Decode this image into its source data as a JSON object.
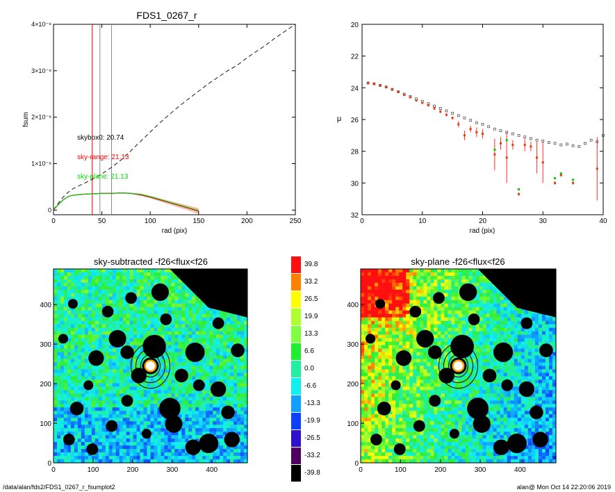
{
  "footer": {
    "path": "/data/alan/fds2/FDS1_0267_r_fsumplot2",
    "stamp": "alan@  Mon Oct 14 22:20:06 2019"
  },
  "chart_data": [
    {
      "id": "fsum",
      "type": "line",
      "title": "FDS1_0267_r",
      "xlabel": "rad (pix)",
      "ylabel": "fsum",
      "xlim": [
        0,
        250
      ],
      "ylim": [
        -1e-09,
        4e-08
      ],
      "xticks": [
        "0",
        "50",
        "100",
        "150",
        "200",
        "250"
      ],
      "yticks": [
        "0",
        "1×10⁻⁸",
        "2×10⁻⁸",
        "3×10⁻⁸",
        "4×10⁻⁸"
      ],
      "ytick_values": [
        0,
        1e-08,
        2e-08,
        3e-08,
        4e-08
      ],
      "vlines": [
        {
          "x": 40,
          "color": "#ff0000"
        },
        {
          "x": 48,
          "color": "#888888"
        },
        {
          "x": 60,
          "color": "#888888"
        }
      ],
      "annotations": [
        {
          "text": "skybox0: 20.74",
          "color": "#000000"
        },
        {
          "text": "sky-range: 21.13",
          "color": "#ff0000"
        },
        {
          "text": "sky-plane: 21.13",
          "color": "#00dd00"
        }
      ],
      "series": [
        {
          "style": "dashed",
          "color": "#000000",
          "x": [
            0,
            5,
            10,
            15,
            20,
            30,
            40,
            50,
            60,
            70,
            80,
            90,
            100,
            110,
            120,
            130,
            140,
            150,
            160,
            170,
            180,
            190,
            200,
            210,
            220,
            230,
            240,
            250
          ],
          "y": [
            0,
            1.5e-09,
            2.8e-09,
            3.8e-09,
            4.6e-09,
            5.6e-09,
            6.6e-09,
            7.8e-09,
            9.2e-09,
            1.08e-08,
            1.28e-08,
            1.48e-08,
            1.68e-08,
            1.88e-08,
            2.06e-08,
            2.24e-08,
            2.4e-08,
            2.56e-08,
            2.72e-08,
            2.86e-08,
            3e-08,
            3.12e-08,
            3.28e-08,
            3.42e-08,
            3.56e-08,
            3.72e-08,
            3.86e-08,
            4e-08
          ]
        },
        {
          "style": "solid",
          "color": "#000000",
          "x": [
            0,
            5,
            10,
            15,
            20,
            30,
            40,
            50,
            60,
            70,
            80,
            90,
            100,
            110,
            120,
            130,
            140,
            150
          ],
          "y": [
            0,
            1.2e-09,
            2.2e-09,
            2.9e-09,
            3.2e-09,
            3.4e-09,
            3.5e-09,
            3.6e-09,
            3.6e-09,
            3.7e-09,
            3.6e-09,
            3.3e-09,
            2.8e-09,
            2.2e-09,
            1.6e-09,
            1e-09,
            4e-10,
            -2e-10
          ]
        },
        {
          "style": "solid",
          "color": "#ff0000",
          "x": [
            0,
            5,
            10,
            15,
            20,
            30,
            40,
            50,
            60,
            70,
            80,
            90,
            100,
            110,
            120,
            130,
            140,
            150
          ],
          "y": [
            0,
            1.2e-09,
            2.2e-09,
            2.9e-09,
            3.2e-09,
            3.4e-09,
            3.5e-09,
            3.6e-09,
            3.6e-09,
            3.7e-09,
            3.6e-09,
            3.3e-09,
            2.8e-09,
            2.2e-09,
            1.6e-09,
            1e-09,
            4e-10,
            -2e-10
          ]
        },
        {
          "style": "solid",
          "color": "#00cc00",
          "x": [
            0,
            5,
            10,
            15,
            20,
            30,
            40,
            50,
            60,
            70,
            80,
            90,
            100,
            110,
            120,
            130,
            140,
            150
          ],
          "y": [
            0,
            1.2e-09,
            2.2e-09,
            2.9e-09,
            3.2e-09,
            3.4e-09,
            3.5e-09,
            3.6e-09,
            3.6e-09,
            3.7e-09,
            3.6e-09,
            3.4e-09,
            2.9e-09,
            2.3e-09,
            1.7e-09,
            1.1e-09,
            5e-10,
            -1e-10
          ]
        }
      ]
    },
    {
      "id": "mu",
      "type": "scatter",
      "title": "",
      "xlabel": "rad (pix)",
      "ylabel": "μ",
      "xlim": [
        0,
        40
      ],
      "ylim": [
        32,
        20
      ],
      "xticks": [
        "0",
        "10",
        "20",
        "30",
        "40"
      ],
      "yticks": [
        "20",
        "22",
        "24",
        "26",
        "28",
        "30",
        "32"
      ],
      "series": [
        {
          "marker": "open-square",
          "color": "#555555",
          "x": [
            1,
            2,
            3,
            4,
            5,
            6,
            7,
            8,
            9,
            10,
            11,
            12,
            13,
            14,
            15,
            16,
            17,
            18,
            19,
            20,
            21,
            22,
            23,
            24,
            25,
            26,
            27,
            28,
            29,
            30,
            31,
            32,
            33,
            34,
            35,
            36,
            37,
            38,
            39,
            40
          ],
          "y": [
            23.7,
            23.75,
            23.85,
            23.95,
            24.1,
            24.25,
            24.4,
            24.55,
            24.7,
            24.85,
            25.0,
            25.15,
            25.3,
            25.45,
            25.6,
            25.75,
            25.9,
            26.05,
            26.2,
            26.3,
            26.45,
            26.6,
            26.7,
            26.8,
            26.9,
            27.0,
            27.1,
            27.2,
            27.3,
            27.35,
            27.45,
            27.5,
            27.6,
            27.55,
            27.65,
            27.7,
            27.5,
            27.3,
            27.4,
            27.0
          ]
        },
        {
          "marker": "filled-dot",
          "color": "#ff0000",
          "x": [
            1,
            2,
            3,
            4,
            5,
            6,
            7,
            8,
            9,
            10,
            11,
            12,
            13,
            14,
            15,
            16,
            17,
            18,
            19,
            20,
            22,
            23,
            24,
            25,
            26,
            27,
            28,
            29,
            30,
            32,
            33,
            35,
            39
          ],
          "y": [
            23.7,
            23.75,
            23.85,
            23.95,
            24.1,
            24.25,
            24.45,
            24.6,
            24.8,
            24.95,
            25.1,
            25.3,
            25.5,
            25.7,
            25.9,
            26.3,
            27.0,
            26.6,
            26.8,
            26.9,
            28.2,
            27.5,
            28.4,
            27.6,
            30.7,
            27.6,
            27.7,
            28.4,
            28.7,
            30.0,
            29.5,
            30.0,
            29.1
          ],
          "err": [
            0.05,
            0.05,
            0.05,
            0.05,
            0.05,
            0.05,
            0.05,
            0.05,
            0.05,
            0.05,
            0.08,
            0.08,
            0.1,
            0.1,
            0.1,
            0.2,
            0.3,
            0.2,
            0.3,
            0.3,
            1.0,
            0.4,
            1.6,
            0.3,
            0.1,
            0.4,
            0.3,
            1.0,
            1.3,
            0.1,
            0.1,
            0.1,
            2.0
          ]
        },
        {
          "marker": "filled-dot",
          "color": "#00cc00",
          "x": [
            22,
            24,
            26,
            32,
            33,
            35
          ],
          "y": [
            27.9,
            27.3,
            30.4,
            29.7,
            29.4,
            29.8
          ]
        }
      ]
    },
    {
      "id": "sky-subtracted",
      "type": "heatmap",
      "title": "sky-subtracted -f26<flux<f26",
      "xlim": [
        0,
        490
      ],
      "ylim": [
        0,
        490
      ],
      "xticks": [
        "0",
        "100",
        "200",
        "300",
        "400"
      ],
      "yticks": [
        "0",
        "100",
        "200",
        "300",
        "400"
      ],
      "center": [
        245,
        248
      ]
    },
    {
      "id": "sky-plane",
      "type": "heatmap",
      "title": "sky-plane -f26<flux<f26",
      "xlim": [
        0,
        490
      ],
      "ylim": [
        0,
        490
      ],
      "xticks": [
        "0",
        "100",
        "200",
        "300",
        "400"
      ],
      "yticks": [
        "0",
        "100",
        "200",
        "300",
        "400"
      ],
      "center": [
        245,
        248
      ]
    },
    {
      "id": "colorbar",
      "type": "table",
      "labels": [
        "39.8",
        "33.2",
        "26.5",
        "19.9",
        "13.3",
        "6.6",
        "0.0",
        "-6.6",
        "-13.3",
        "-19.9",
        "-26.5",
        "-33.2",
        "-39.8"
      ],
      "colors": [
        "#ff1010",
        "#ff8000",
        "#ffff00",
        "#b0ff30",
        "#80ff40",
        "#20ee30",
        "#20f0a0",
        "#10f0f0",
        "#10a0ff",
        "#1040ff",
        "#3010d0",
        "#500060",
        "#000000"
      ]
    }
  ]
}
